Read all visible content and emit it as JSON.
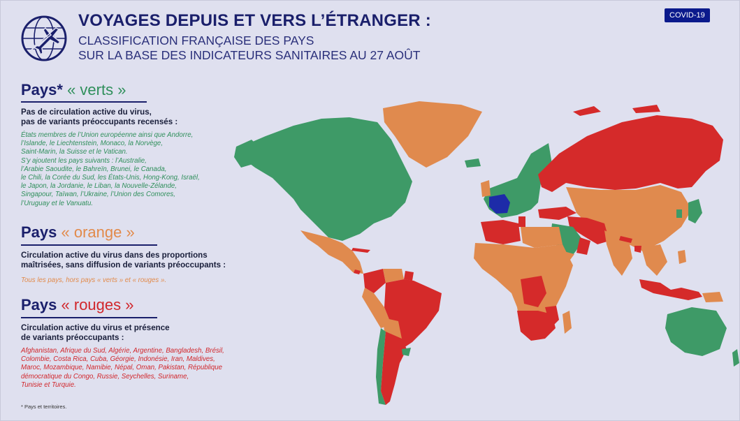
{
  "badge": "COVID-19",
  "title": "VOYAGES DEPUIS ET VERS L’ÉTRANGER :",
  "subtitle": [
    "CLASSIFICATION FRANÇAISE DES PAYS",
    "SUR LA BASE DES INDICATEURS SANITAIRES AU 27 AOÛT"
  ],
  "green": {
    "head_prefix": "Pays*",
    "head_keyword": "« verts »",
    "desc": [
      "Pas de circulation active du virus,",
      "pas de variants préoccupants recensés :"
    ],
    "list": [
      "États membres de l’Union européenne ainsi que Andorre,",
      "l’Islande, le Liechtenstein, Monaco, la Norvège,",
      "Saint-Marin, la Suisse et le Vatican.",
      "S’y ajoutent les pays suivants : l’Australie,",
      "l’Arabie Saoudite, le Bahreïn, Brunei, le Canada,",
      "le Chili, la Corée du Sud, les États-Unis, Hong-Kong, Israël,",
      "le Japon, la Jordanie, le Liban, la Nouvelle-Zélande,",
      "Singapour, Taïwan, l’Ukraine, l’Union des Comores,",
      "l’Uruguay et le Vanuatu."
    ]
  },
  "orange": {
    "head_prefix": "Pays",
    "head_keyword": "« orange »",
    "desc": [
      "Circulation active du virus dans des proportions",
      "maîtrisées, sans diffusion de variants préoccupants :"
    ],
    "list": [
      "Tous les pays, hors pays « verts » et « rouges »."
    ]
  },
  "red": {
    "head_prefix": "Pays",
    "head_keyword": "« rouges »",
    "desc": [
      "Circulation active du virus et présence",
      "de variants préoccupants :"
    ],
    "list": [
      "Afghanistan, Afrique du Sud, Algérie, Argentine, Bangladesh, Brésil,",
      "Colombie, Costa Rica, Cuba, Géorgie, Indonésie, Iran, Maldives,",
      "Maroc, Mozambique, Namibie, Népal, Oman, Pakistan, République",
      "démocratique du Congo, Russie, Seychelles, Suriname,",
      "Tunisie et Turquie."
    ]
  },
  "footnote": "* Pays et territoires.",
  "colors": {
    "navy": "#1a1f6b",
    "green": "#3e9a67",
    "orange": "#e08a4e",
    "red": "#d52a2a",
    "france": "#1d2ba8",
    "background": "#dfe0ef"
  },
  "icons": {
    "logo": "airplane-globe-icon"
  }
}
